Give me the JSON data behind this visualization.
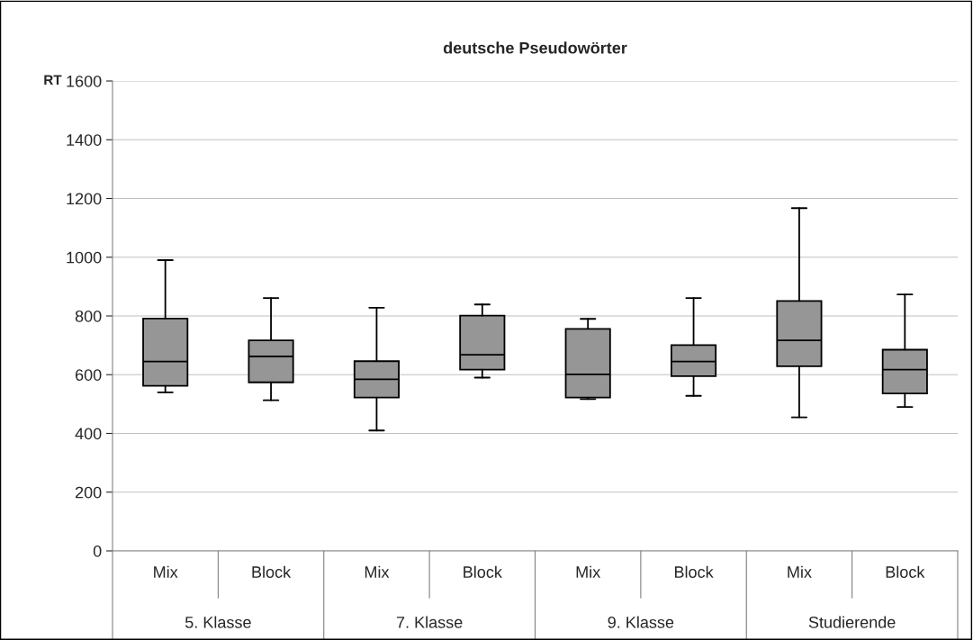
{
  "chart_data": {
    "type": "box",
    "title": "deutsche Pseudowörter",
    "ylabel": "RT",
    "categories": [
      "Mix",
      "Block",
      "Mix",
      "Block",
      "Mix",
      "Block",
      "Mix",
      "Block"
    ],
    "annotations": [
      "5. Klasse",
      "7. Klasse",
      "9. Klasse",
      "Studierende"
    ],
    "boxes": [
      {
        "low": 540,
        "q1": 562,
        "median": 645,
        "q3": 791,
        "high": 990
      },
      {
        "low": 513,
        "q1": 574,
        "median": 662,
        "q3": 717,
        "high": 861
      },
      {
        "low": 410,
        "q1": 522,
        "median": 584,
        "q3": 646,
        "high": 828
      },
      {
        "low": 590,
        "q1": 617,
        "median": 668,
        "q3": 801,
        "high": 839
      },
      {
        "low": 517,
        "q1": 522,
        "median": 601,
        "q3": 756,
        "high": 790
      },
      {
        "low": 528,
        "q1": 595,
        "median": 645,
        "q3": 701,
        "high": 861
      },
      {
        "low": 455,
        "q1": 629,
        "median": 717,
        "q3": 851,
        "high": 1167
      },
      {
        "low": 490,
        "q1": 536,
        "median": 617,
        "q3": 685,
        "high": 873
      }
    ],
    "color": "#969696",
    "ylim": [
      0,
      1600
    ],
    "yticks": [
      0,
      200,
      400,
      600,
      800,
      1000,
      1200,
      1400,
      1600
    ],
    "grid": "y",
    "legend": false
  }
}
